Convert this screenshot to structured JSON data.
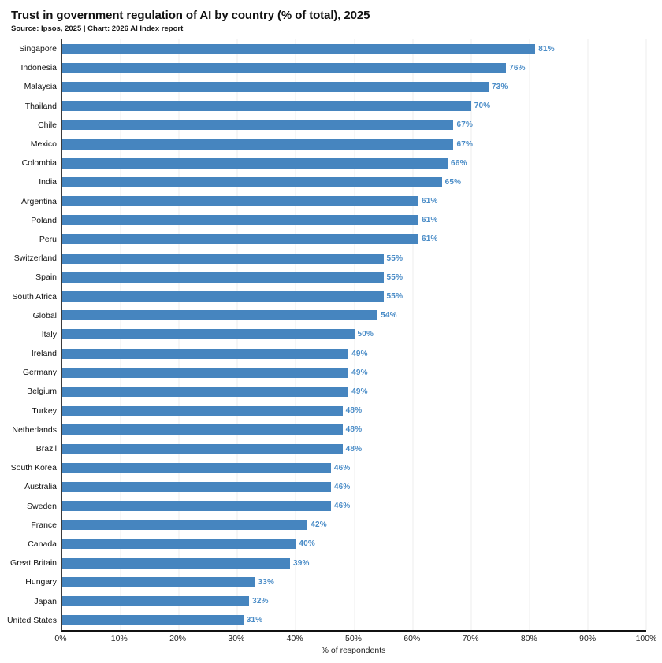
{
  "header": {
    "title": "Trust in government regulation of AI by country (% of total), 2025",
    "source": "Source: Ipsos, 2025 | Chart: 2026 AI Index report"
  },
  "chart_data": {
    "type": "bar",
    "orientation": "horizontal",
    "title": "Trust in government regulation of AI by country (% of total), 2025",
    "categories": [
      "Singapore",
      "Indonesia",
      "Malaysia",
      "Thailand",
      "Chile",
      "Mexico",
      "Colombia",
      "India",
      "Argentina",
      "Poland",
      "Peru",
      "Switzerland",
      "Spain",
      "South Africa",
      "Global",
      "Italy",
      "Ireland",
      "Germany",
      "Belgium",
      "Turkey",
      "Netherlands",
      "Brazil",
      "South Korea",
      "Australia",
      "Sweden",
      "France",
      "Canada",
      "Great Britain",
      "Hungary",
      "Japan",
      "United States"
    ],
    "values": [
      81,
      76,
      73,
      70,
      67,
      67,
      66,
      65,
      61,
      61,
      61,
      55,
      55,
      55,
      54,
      50,
      49,
      49,
      49,
      48,
      48,
      48,
      46,
      46,
      46,
      42,
      40,
      39,
      33,
      32,
      31
    ],
    "value_suffix": "%",
    "xlabel": "% of respondents",
    "xlim": [
      0,
      100
    ],
    "xticks": [
      0,
      10,
      20,
      30,
      40,
      50,
      60,
      70,
      80,
      90,
      100
    ],
    "xtick_suffix": "%",
    "grid": "vertical",
    "legend": "none",
    "colors": {
      "bar": "#4685bf",
      "value_label": "#4a8cc7",
      "gridline": "#ededed",
      "axis_left": "#3a3a3a",
      "axis_bottom": "#111111",
      "text": "#111111"
    }
  }
}
